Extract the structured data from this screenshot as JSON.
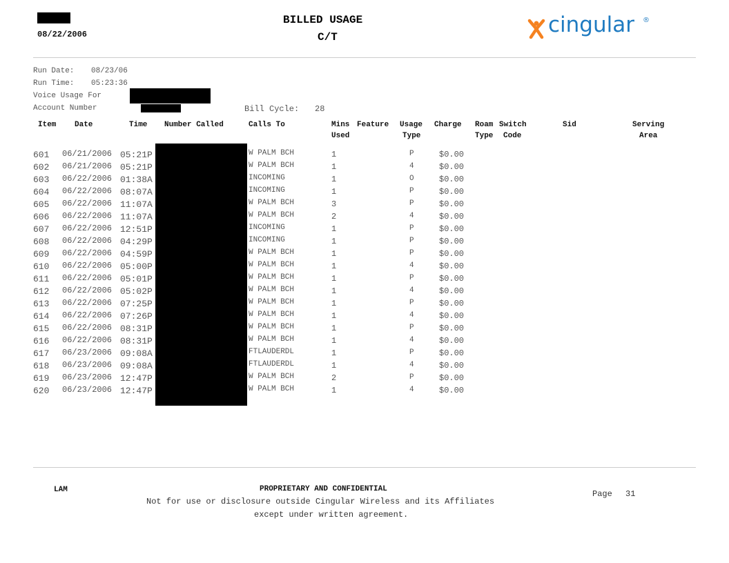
{
  "header": {
    "date": "08/22/2006",
    "title": "BILLED USAGE",
    "subtitle": "C/T",
    "logo_text": "cingular",
    "logo_mark": "®",
    "brand_orange": "#f58220",
    "brand_blue": "#1f7bc1"
  },
  "meta": {
    "run_date_label": "Run Date:",
    "run_date": "08/23/06",
    "run_time_label": "Run Time:",
    "run_time": "05:23:36",
    "voice_usage_label": "Voice Usage For",
    "account_label": "Account Number",
    "bill_cycle_label": "Bill Cycle:",
    "bill_cycle": "28"
  },
  "columns": {
    "item": "Item",
    "date": "Date",
    "time": "Time",
    "number": "Number Called",
    "calls_to": "Calls To",
    "mins1": "Mins",
    "mins2": "Used",
    "feature": "Feature",
    "usage1": "Usage",
    "usage2": "Type",
    "charge": "Charge",
    "roam1": "Roam",
    "roam2": "Type",
    "switch1": "Switch",
    "switch2": "Code",
    "sid": "Sid",
    "serving1": "Serving",
    "serving2": "Area"
  },
  "rows": [
    {
      "item": "601",
      "date": "06/21/2006",
      "time": "05:21P",
      "calls_to": "W PALM BCH",
      "mins": "1",
      "usage": "P",
      "charge": "$0.00"
    },
    {
      "item": "602",
      "date": "06/21/2006",
      "time": "05:21P",
      "calls_to": "W PALM BCH",
      "mins": "1",
      "usage": "4",
      "charge": "$0.00"
    },
    {
      "item": "603",
      "date": "06/22/2006",
      "time": "01:38A",
      "calls_to": "INCOMING",
      "mins": "1",
      "usage": "O",
      "charge": "$0.00"
    },
    {
      "item": "604",
      "date": "06/22/2006",
      "time": "08:07A",
      "calls_to": "INCOMING",
      "mins": "1",
      "usage": "P",
      "charge": "$0.00"
    },
    {
      "item": "605",
      "date": "06/22/2006",
      "time": "11:07A",
      "calls_to": "W PALM BCH",
      "mins": "3",
      "usage": "P",
      "charge": "$0.00"
    },
    {
      "item": "606",
      "date": "06/22/2006",
      "time": "11:07A",
      "calls_to": "W PALM BCH",
      "mins": "2",
      "usage": "4",
      "charge": "$0.00"
    },
    {
      "item": "607",
      "date": "06/22/2006",
      "time": "12:51P",
      "calls_to": "INCOMING",
      "mins": "1",
      "usage": "P",
      "charge": "$0.00"
    },
    {
      "item": "608",
      "date": "06/22/2006",
      "time": "04:29P",
      "calls_to": "INCOMING",
      "mins": "1",
      "usage": "P",
      "charge": "$0.00"
    },
    {
      "item": "609",
      "date": "06/22/2006",
      "time": "04:59P",
      "calls_to": "W PALM BCH",
      "mins": "1",
      "usage": "P",
      "charge": "$0.00"
    },
    {
      "item": "610",
      "date": "06/22/2006",
      "time": "05:00P",
      "calls_to": "W PALM BCH",
      "mins": "1",
      "usage": "4",
      "charge": "$0.00"
    },
    {
      "item": "611",
      "date": "06/22/2006",
      "time": "05:01P",
      "calls_to": "W PALM BCH",
      "mins": "1",
      "usage": "P",
      "charge": "$0.00"
    },
    {
      "item": "612",
      "date": "06/22/2006",
      "time": "05:02P",
      "calls_to": "W PALM BCH",
      "mins": "1",
      "usage": "4",
      "charge": "$0.00"
    },
    {
      "item": "613",
      "date": "06/22/2006",
      "time": "07:25P",
      "calls_to": "W PALM BCH",
      "mins": "1",
      "usage": "P",
      "charge": "$0.00"
    },
    {
      "item": "614",
      "date": "06/22/2006",
      "time": "07:26P",
      "calls_to": "W PALM BCH",
      "mins": "1",
      "usage": "4",
      "charge": "$0.00"
    },
    {
      "item": "615",
      "date": "06/22/2006",
      "time": "08:31P",
      "calls_to": "W PALM BCH",
      "mins": "1",
      "usage": "P",
      "charge": "$0.00"
    },
    {
      "item": "616",
      "date": "06/22/2006",
      "time": "08:31P",
      "calls_to": "W PALM BCH",
      "mins": "1",
      "usage": "4",
      "charge": "$0.00"
    },
    {
      "item": "617",
      "date": "06/23/2006",
      "time": "09:08A",
      "calls_to": "FTLAUDERDL",
      "mins": "1",
      "usage": "P",
      "charge": "$0.00"
    },
    {
      "item": "618",
      "date": "06/23/2006",
      "time": "09:08A",
      "calls_to": "FTLAUDERDL",
      "mins": "1",
      "usage": "4",
      "charge": "$0.00"
    },
    {
      "item": "619",
      "date": "06/23/2006",
      "time": "12:47P",
      "calls_to": "W PALM BCH",
      "mins": "2",
      "usage": "P",
      "charge": "$0.00"
    },
    {
      "item": "620",
      "date": "06/23/2006",
      "time": "12:47P",
      "calls_to": "W PALM BCH",
      "mins": "1",
      "usage": "4",
      "charge": "$0.00"
    }
  ],
  "footer": {
    "code": "LAM",
    "heading": "PROPRIETARY AND CONFIDENTIAL",
    "line1": "Not for use or disclosure outside Cingular Wireless and its Affiliates",
    "line2": "except under written agreement.",
    "page_label": "Page",
    "page_number": "31"
  }
}
